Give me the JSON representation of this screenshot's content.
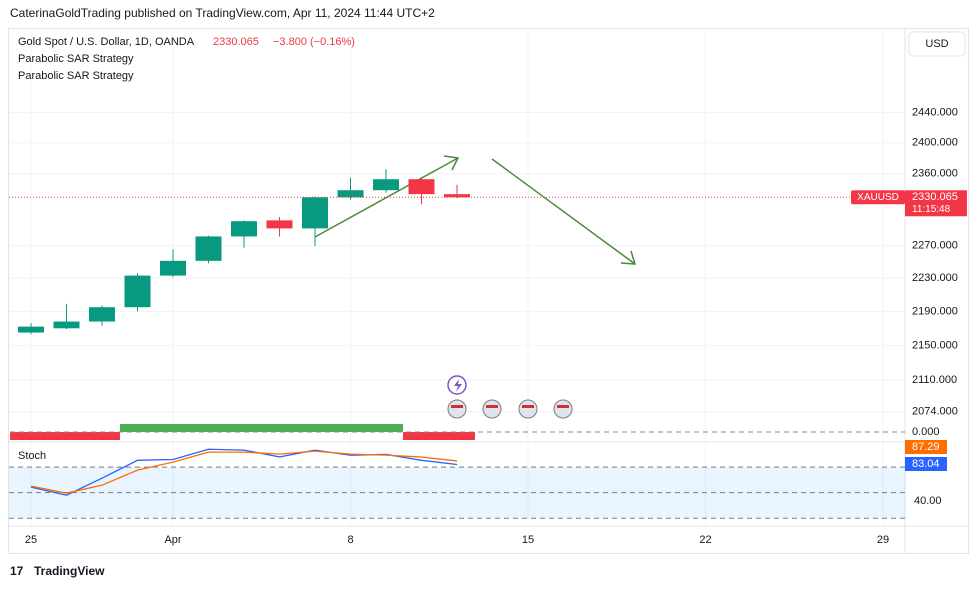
{
  "page": {
    "publisher_line": "CaterinaGoldTrading published on TradingView.com, Apr 11, 2024 11:44 UTC+2",
    "brand": "TradingView",
    "currency": "USD"
  },
  "chart_data": {
    "type": "candlestick",
    "title": "Gold Spot / U.S. Dollar, 1D, OANDA",
    "change_text": "−3.800 (−0.16%)",
    "indicators": [
      "Parabolic SAR Strategy",
      "Parabolic SAR Strategy"
    ],
    "symbol": "XAUUSD",
    "countdown": "11:15:48",
    "categories": [
      "25",
      null,
      null,
      null,
      "Apr",
      null,
      null,
      null,
      null,
      "8",
      null,
      null,
      null,
      null,
      "15",
      null,
      null,
      null,
      null,
      "22",
      null,
      null,
      null,
      null,
      "29"
    ],
    "open": [
      2165,
      2170,
      2178,
      2195,
      2233,
      2251,
      2281,
      2301,
      2291,
      2330,
      2339,
      2353,
      2334,
      null,
      null,
      null,
      null,
      null,
      null,
      null,
      null,
      null,
      null,
      null,
      null
    ],
    "high": [
      2176,
      2199,
      2197,
      2236,
      2265,
      2282,
      2301,
      2305,
      2331,
      2355,
      2366,
      2356,
      2346,
      null,
      null,
      null,
      null,
      null,
      null,
      null,
      null,
      null,
      null,
      null,
      null
    ],
    "low": [
      2163,
      2169,
      2173,
      2190,
      2231,
      2248,
      2267,
      2281,
      2269,
      2327,
      2336,
      2321,
      2329,
      null,
      null,
      null,
      null,
      null,
      null,
      null,
      null,
      null,
      null,
      null,
      null
    ],
    "close": [
      2172,
      2178,
      2195,
      2233,
      2251,
      2281,
      2300,
      2291,
      2330,
      2339,
      2353,
      2334,
      2330.065,
      null,
      null,
      null,
      null,
      null,
      null,
      null,
      null,
      null,
      null,
      null,
      null
    ],
    "up_color": "#089981",
    "down_color": "#f23645",
    "log_scale": true,
    "grid": true,
    "ylim": [
      2059,
      2553
    ],
    "yticks": [
      {
        "value": 2440,
        "label": "2440.000"
      },
      {
        "value": 2400,
        "label": "2400.000"
      },
      {
        "value": 2360,
        "label": "2360.000"
      },
      {
        "value": 2270,
        "label": "2270.000"
      },
      {
        "value": 2230,
        "label": "2230.000"
      },
      {
        "value": 2190,
        "label": "2190.000"
      },
      {
        "value": 2150,
        "label": "2150.000"
      },
      {
        "value": 2110,
        "label": "2110.000"
      },
      {
        "value": 2074,
        "label": "2074.000"
      }
    ],
    "strategy_label": "0.000",
    "stochastic": {
      "title": "Stoch",
      "k_values": [
        56.5,
        47,
        67,
        88,
        89,
        101,
        100,
        92,
        100,
        94,
        95,
        88,
        83.04
      ],
      "d_values": [
        57.6,
        49.4,
        58.8,
        76.5,
        85.9,
        97.6,
        97.6,
        95.3,
        98.8,
        95.3,
        94.1,
        91.8,
        87.29
      ],
      "k_color": "#2962ff",
      "d_color": "#ff6d00",
      "ylim": [
        12,
        106
      ],
      "yticks": [
        {
          "value": 40,
          "label": "40.00"
        }
      ],
      "levels": [
        80,
        50,
        20
      ]
    }
  }
}
